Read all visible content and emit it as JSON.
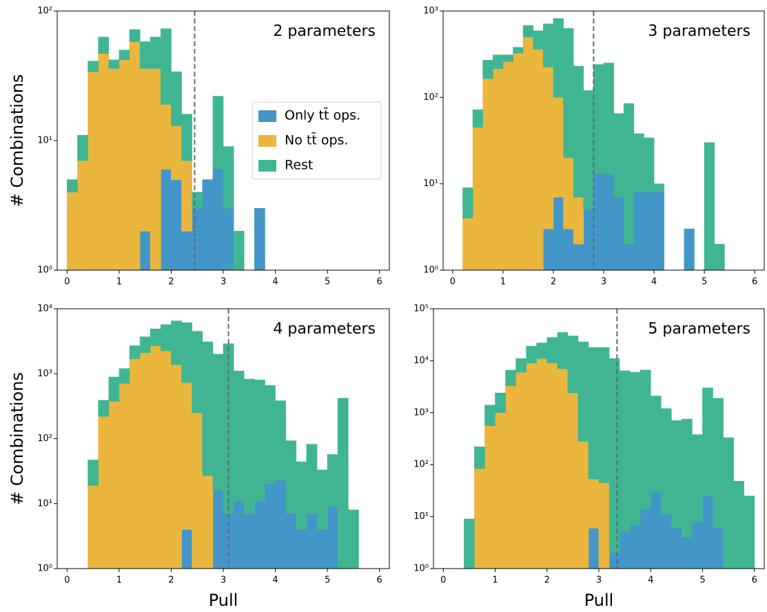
{
  "chart_data": [
    {
      "type": "histogram",
      "annotation": "2 parameters",
      "ylabel": "# Combinations",
      "log_y": true,
      "legend": "center right",
      "vline": 2.45,
      "bins": [
        0,
        0.2,
        0.4,
        0.6,
        0.8,
        1,
        1.2,
        1.4,
        1.6,
        1.8,
        2,
        2.2,
        2.4,
        2.6,
        2.8,
        3,
        3.2,
        3.4,
        3.6,
        3.8,
        4,
        4.2,
        4.4,
        4.6,
        4.8,
        5,
        5.2,
        5.4,
        5.6,
        5.8,
        6
      ],
      "xlim": [
        -0.19,
        6.19
      ],
      "xticks": [
        0,
        1,
        2,
        3,
        4,
        5,
        6
      ],
      "ylim": [
        1,
        100
      ],
      "yticks": [
        {
          "value": 1,
          "label": "10⁰"
        },
        {
          "value": 10,
          "label": "10¹"
        },
        {
          "value": 100,
          "label": "10²"
        }
      ],
      "series": [
        {
          "name": "Only tt̄ ops.",
          "color": "#4396c7",
          "values": [
            0,
            0,
            0,
            0,
            0,
            0,
            0,
            2,
            0,
            6,
            5,
            2,
            3,
            5,
            6,
            3,
            0,
            0,
            3,
            0,
            0,
            0,
            0,
            0,
            0,
            0,
            0,
            0,
            0,
            0
          ]
        },
        {
          "name": "No tt̄ ops.",
          "color": "#ebb63e",
          "values": [
            4,
            7,
            34,
            47,
            36,
            42,
            58,
            34,
            36,
            13,
            8,
            5,
            0,
            0,
            0,
            0,
            0,
            0,
            0,
            0,
            0,
            0,
            0,
            0,
            0,
            0,
            0,
            0,
            0,
            0
          ]
        },
        {
          "name": "Rest",
          "color": "#40b593",
          "values": [
            1,
            4,
            7,
            16,
            6,
            8,
            14,
            22,
            27,
            54,
            21,
            9,
            1,
            0,
            16,
            6,
            2,
            0,
            0,
            0,
            0,
            0,
            0,
            0,
            0,
            0,
            0,
            0,
            0,
            0
          ]
        }
      ]
    },
    {
      "type": "histogram",
      "annotation": "3 parameters",
      "log_y": true,
      "vline": 2.8,
      "bins": [
        0,
        0.2,
        0.4,
        0.6,
        0.8,
        1,
        1.2,
        1.4,
        1.6,
        1.8,
        2,
        2.2,
        2.4,
        2.6,
        2.8,
        3,
        3.2,
        3.4,
        3.6,
        3.8,
        4,
        4.2,
        4.4,
        4.6,
        4.8,
        5,
        5.2,
        5.4,
        5.6,
        5.8,
        6
      ],
      "xlim": [
        -0.19,
        6.19
      ],
      "xticks": [
        0,
        1,
        2,
        3,
        4,
        5,
        6
      ],
      "ylim": [
        1,
        1000
      ],
      "yticks": [
        {
          "value": 1,
          "label": "10⁰"
        },
        {
          "value": 10,
          "label": "10¹"
        },
        {
          "value": 100,
          "label": "10²"
        },
        {
          "value": 1000,
          "label": "10³"
        }
      ],
      "series": [
        {
          "color": "#4396c7",
          "values": [
            0,
            0,
            0,
            0,
            0,
            0,
            0,
            0,
            0,
            3,
            7,
            3,
            2,
            5,
            13,
            13,
            7,
            2,
            8,
            8,
            8,
            0,
            0,
            3,
            0,
            0,
            0,
            0,
            0,
            0
          ]
        },
        {
          "color": "#ebb63e",
          "values": [
            0,
            4,
            45,
            165,
            215,
            260,
            325,
            500,
            360,
            222,
            93,
            17,
            5,
            0,
            0,
            0,
            0,
            0,
            0,
            0,
            0,
            0,
            0,
            0,
            0,
            0,
            0,
            0,
            0,
            0
          ]
        },
        {
          "color": "#40b593",
          "values": [
            0,
            5,
            27,
            105,
            95,
            50,
            55,
            180,
            230,
            485,
            720,
            610,
            223,
            115,
            227,
            237,
            58,
            83,
            30,
            26,
            2,
            0,
            0,
            0,
            0,
            30,
            2,
            0,
            0,
            0
          ]
        }
      ]
    },
    {
      "type": "histogram",
      "annotation": "4 parameters",
      "ylabel": "# Combinations",
      "xlabel": "Pull",
      "log_y": true,
      "vline": 3.1,
      "bins": [
        0,
        0.2,
        0.4,
        0.6,
        0.8,
        1,
        1.2,
        1.4,
        1.6,
        1.8,
        2,
        2.2,
        2.4,
        2.6,
        2.8,
        3,
        3.2,
        3.4,
        3.6,
        3.8,
        4,
        4.2,
        4.4,
        4.6,
        4.8,
        5,
        5.2,
        5.4,
        5.6,
        5.8,
        6
      ],
      "xlim": [
        -0.19,
        6.19
      ],
      "xticks": [
        0,
        1,
        2,
        3,
        4,
        5,
        6
      ],
      "ylim": [
        1,
        10000
      ],
      "yticks": [
        {
          "value": 1,
          "label": "10⁰"
        },
        {
          "value": 10,
          "label": "10¹"
        },
        {
          "value": 100,
          "label": "10²"
        },
        {
          "value": 1000,
          "label": "10³"
        },
        {
          "value": 10000,
          "label": "10⁴"
        }
      ],
      "series": [
        {
          "color": "#4396c7",
          "values": [
            0,
            0,
            0,
            0,
            0,
            0,
            0,
            0,
            0,
            0,
            0,
            4,
            0,
            0,
            16,
            7,
            11,
            7,
            11,
            20,
            23,
            7,
            4,
            7,
            4,
            9,
            0,
            0,
            0,
            0
          ]
        },
        {
          "color": "#ebb63e",
          "values": [
            0,
            0,
            19,
            220,
            375,
            710,
            1700,
            2100,
            2700,
            2250,
            1370,
            726,
            250,
            27,
            0,
            0,
            0,
            0,
            0,
            0,
            0,
            0,
            0,
            0,
            0,
            0,
            0,
            0,
            0,
            0
          ]
        },
        {
          "color": "#40b593",
          "values": [
            0,
            0,
            28,
            170,
            515,
            490,
            1000,
            1600,
            2200,
            3450,
            5130,
            5370,
            4250,
            3070,
            1980,
            2890,
            1090,
            820,
            790,
            640,
            360,
            86,
            40,
            75,
            29,
            48,
            420,
            8,
            0,
            0
          ]
        }
      ]
    },
    {
      "type": "histogram",
      "annotation": "5 parameters",
      "xlabel": "Pull",
      "log_y": true,
      "vline": 3.35,
      "bins": [
        0,
        0.2,
        0.4,
        0.6,
        0.8,
        1,
        1.2,
        1.4,
        1.6,
        1.8,
        2,
        2.2,
        2.4,
        2.6,
        2.8,
        3,
        3.2,
        3.4,
        3.6,
        3.8,
        4,
        4.2,
        4.4,
        4.6,
        4.8,
        5,
        5.2,
        5.4,
        5.6,
        5.8,
        6
      ],
      "xlim": [
        -0.19,
        6.19
      ],
      "xticks": [
        0,
        1,
        2,
        3,
        4,
        5,
        6
      ],
      "ylim": [
        1,
        100000
      ],
      "yticks": [
        {
          "value": 1,
          "label": "10⁰"
        },
        {
          "value": 10,
          "label": "10¹"
        },
        {
          "value": 100,
          "label": "10²"
        },
        {
          "value": 1000,
          "label": "10³"
        },
        {
          "value": 10000,
          "label": "10⁴"
        },
        {
          "value": 100000,
          "label": "10⁵"
        }
      ],
      "series": [
        {
          "color": "#4396c7",
          "values": [
            0,
            0,
            0,
            0,
            0,
            0,
            0,
            0,
            0,
            0,
            0,
            0,
            0,
            0,
            6,
            0,
            2,
            5,
            7,
            14,
            29,
            11,
            6,
            4,
            8,
            25,
            6,
            0,
            0,
            0
          ]
        },
        {
          "color": "#ebb63e",
          "values": [
            0,
            0,
            0,
            84,
            560,
            1000,
            3300,
            6000,
            9000,
            11000,
            9000,
            7000,
            2400,
            280,
            47,
            45,
            0,
            0,
            0,
            0,
            0,
            0,
            0,
            0,
            0,
            0,
            0,
            0,
            0,
            0
          ]
        },
        {
          "color": "#40b593",
          "values": [
            0,
            0,
            9,
            136,
            840,
            1400,
            3300,
            5000,
            10000,
            11000,
            19000,
            28000,
            27600,
            22720,
            17950,
            17950,
            11000,
            6400,
            6000,
            6600,
            2070,
            1190,
            700,
            750,
            370,
            2980,
            1890,
            330,
            48,
            25
          ]
        }
      ]
    }
  ]
}
